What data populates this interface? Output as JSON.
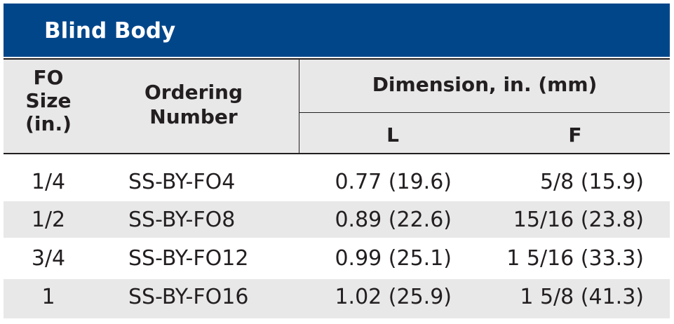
{
  "title": "Blind Body",
  "headers": {
    "fo_size": "FO\nSize\n(in.)",
    "ordering_number": "Ordering\nNumber",
    "dimension": "Dimension, in. (mm)",
    "l": "L",
    "f": "F"
  },
  "rows": [
    {
      "size": "1/4",
      "ordering": "SS-BY-FO4",
      "l": "0.77 (19.6)",
      "f": "5/8 (15.9)"
    },
    {
      "size": "1/2",
      "ordering": "SS-BY-FO8",
      "l": "0.89 (22.6)",
      "f": "15/16 (23.8)"
    },
    {
      "size": "3/4",
      "ordering": "SS-BY-FO12",
      "l": "0.99 (25.1)",
      "f": "1 5/16 (33.3)"
    },
    {
      "size": "1",
      "ordering": "SS-BY-FO16",
      "l": "1.02 (25.9)",
      "f": "1 5/8 (41.3)"
    }
  ],
  "colors": {
    "title_bar": "#02468a",
    "header_fill": "#e8e8e8",
    "stripe": "#e8e8e8",
    "text": "#231f20"
  }
}
